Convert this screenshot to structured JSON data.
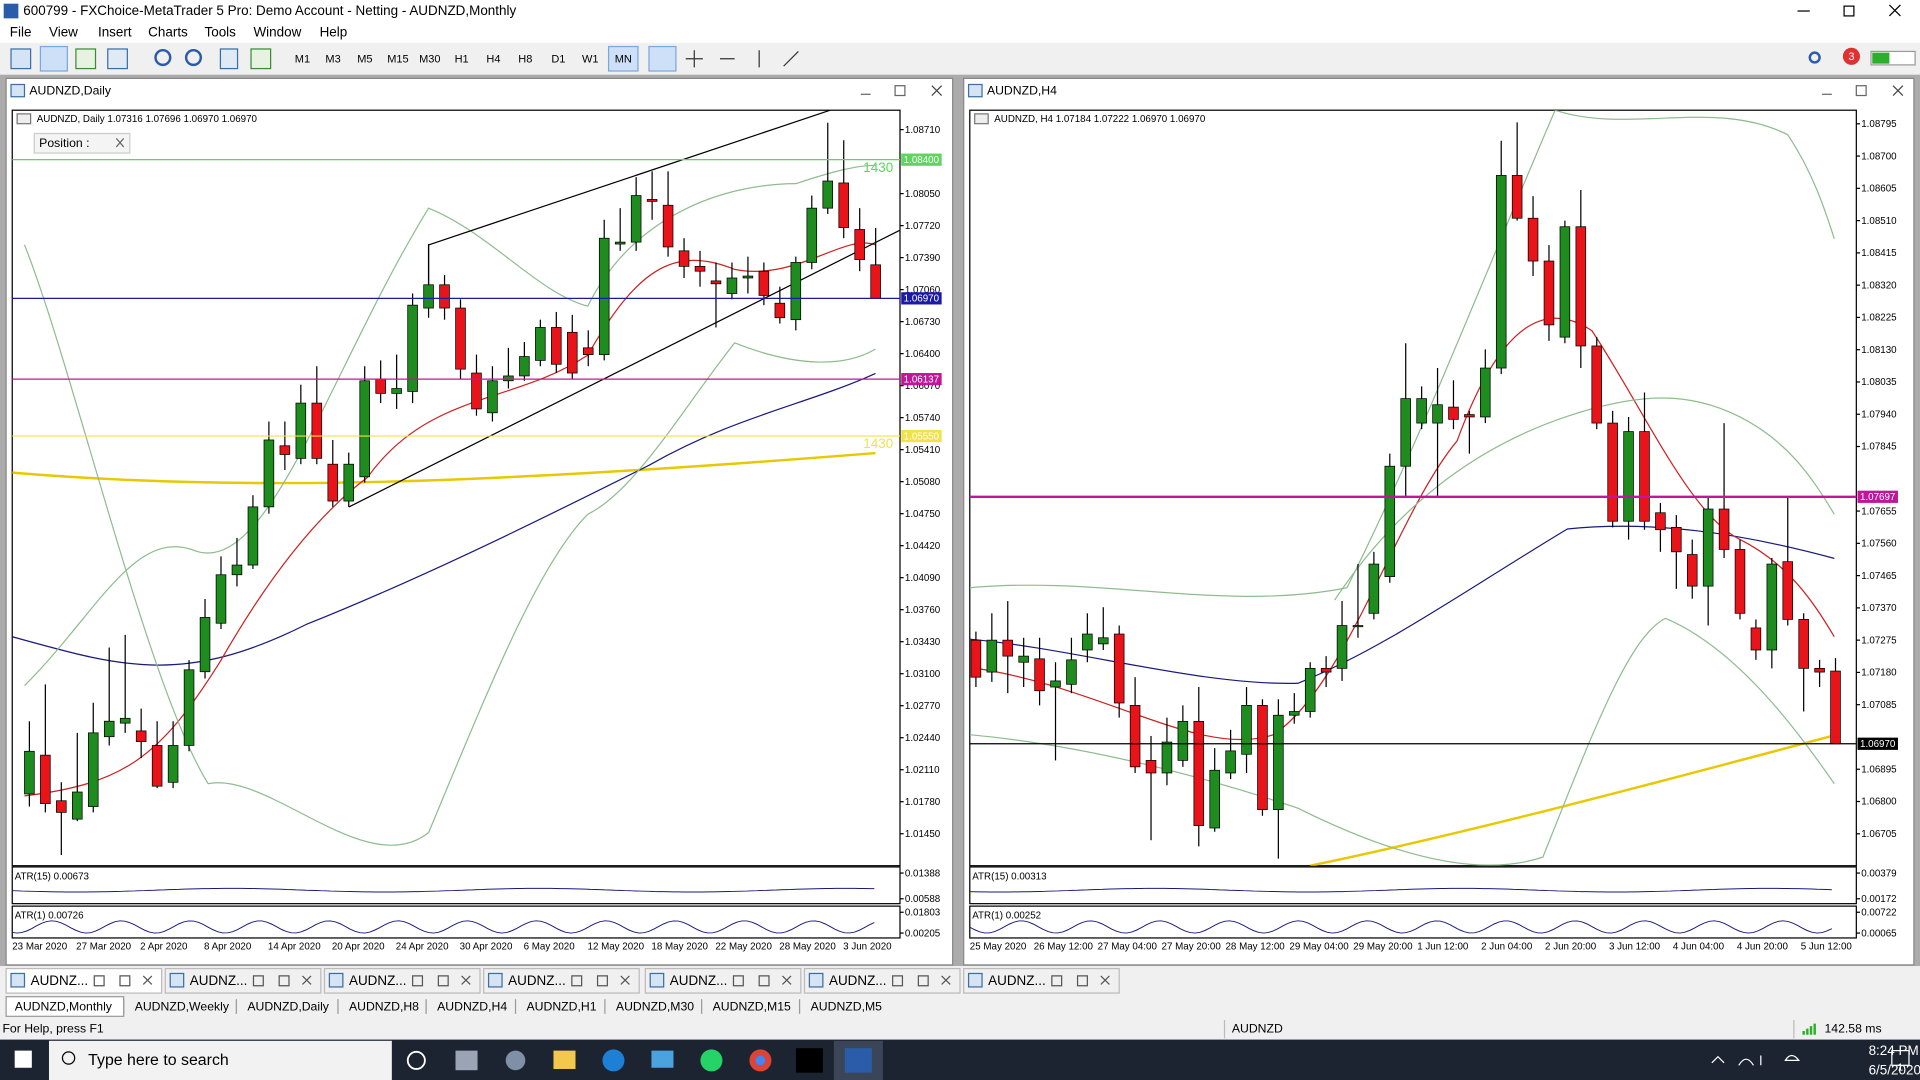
{
  "window_title": "600799 - FXChoice-MetaTrader 5 Pro: Demo Account - Netting - AUDNZD,Monthly",
  "menu": [
    "File",
    "View",
    "Insert",
    "Charts",
    "Tools",
    "Window",
    "Help"
  ],
  "timeframes": [
    "M1",
    "M3",
    "M5",
    "M15",
    "M30",
    "H1",
    "H4",
    "H8",
    "D1",
    "W1",
    "MN"
  ],
  "alert_count": "3",
  "charts": [
    {
      "window_title": "AUDNZD,Daily",
      "info": "AUDNZD, Daily  1.07316 1.07696 1.06970 1.06970",
      "position_label": "Position :",
      "ylim": [
        1.0112,
        1.0891
      ],
      "yticks": [
        {
          "value": 1.0871,
          "label": "1.08710"
        },
        {
          "value": 1.0805,
          "label": "1.08050"
        },
        {
          "value": 1.0772,
          "label": "1.07720"
        },
        {
          "value": 1.0739,
          "label": "1.07390"
        },
        {
          "value": 1.0706,
          "label": "1.07060"
        },
        {
          "value": 1.0673,
          "label": "1.06730"
        },
        {
          "value": 1.064,
          "label": "1.06400"
        },
        {
          "value": 1.0607,
          "label": "1.06070"
        },
        {
          "value": 1.0574,
          "label": "1.05740"
        },
        {
          "value": 1.0541,
          "label": "1.05410"
        },
        {
          "value": 1.0508,
          "label": "1.05080"
        },
        {
          "value": 1.0475,
          "label": "1.04750"
        },
        {
          "value": 1.0442,
          "label": "1.04420"
        },
        {
          "value": 1.0409,
          "label": "1.04090"
        },
        {
          "value": 1.0376,
          "label": "1.03760"
        },
        {
          "value": 1.0343,
          "label": "1.03430"
        },
        {
          "value": 1.031,
          "label": "1.03100"
        },
        {
          "value": 1.0277,
          "label": "1.02770"
        },
        {
          "value": 1.0244,
          "label": "1.02440"
        },
        {
          "value": 1.0211,
          "label": "1.02110"
        },
        {
          "value": 1.0178,
          "label": "1.01780"
        },
        {
          "value": 1.0145,
          "label": "1.01450"
        }
      ],
      "levels": [
        {
          "value": 1.084,
          "label": "1.08400",
          "color": "#5cd65c",
          "note": "1430"
        },
        {
          "value": 1.0697,
          "label": "1.06970",
          "color": "#1a1aa6"
        },
        {
          "value": 1.06137,
          "label": "1.06137",
          "color": "#c0169a"
        },
        {
          "value": 1.0555,
          "label": "1.05550",
          "color": "#f2e14c",
          "note": "1430"
        }
      ],
      "candles": [
        [
          1.0186,
          1.0261,
          1.0173,
          1.023
        ],
        [
          1.0226,
          1.0299,
          1.0167,
          1.0176
        ],
        [
          1.0179,
          1.0198,
          1.0123,
          1.0167
        ],
        [
          1.016,
          1.0249,
          1.0158,
          1.0188
        ],
        [
          1.0173,
          1.028,
          1.0167,
          1.0249
        ],
        [
          1.0245,
          1.0337,
          1.0236,
          1.0261
        ],
        [
          1.0259,
          1.035,
          1.0249,
          1.0264
        ],
        [
          1.0251,
          1.0274,
          1.0223,
          1.024
        ],
        [
          1.0236,
          1.0261,
          1.0192,
          1.0194
        ],
        [
          1.0198,
          1.0261,
          1.0192,
          1.0236
        ],
        [
          1.0236,
          1.0324,
          1.023,
          1.0314
        ],
        [
          1.0312,
          1.0387,
          1.0305,
          1.0368
        ],
        [
          1.0362,
          1.0431,
          1.0356,
          1.0412
        ],
        [
          1.0412,
          1.045,
          1.04,
          1.0422
        ],
        [
          1.0422,
          1.0494,
          1.0418,
          1.0482
        ],
        [
          1.0482,
          1.057,
          1.0475,
          1.0551
        ],
        [
          1.0545,
          1.057,
          1.052,
          1.0536
        ],
        [
          1.0532,
          1.0608,
          1.0526,
          1.0589
        ],
        [
          1.0589,
          1.0627,
          1.0526,
          1.0532
        ],
        [
          1.0526,
          1.0551,
          1.0482,
          1.0488
        ],
        [
          1.0488,
          1.0538,
          1.0482,
          1.0526
        ],
        [
          1.0513,
          1.0627,
          1.0507,
          1.0612
        ],
        [
          1.0614,
          1.0633,
          1.0589,
          1.0599
        ],
        [
          1.0599,
          1.0639,
          1.0583,
          1.0604
        ],
        [
          1.0601,
          1.0702,
          1.0589,
          1.069
        ],
        [
          1.0687,
          1.0753,
          1.0677,
          1.0711
        ],
        [
          1.0711,
          1.0721,
          1.0675,
          1.0687
        ],
        [
          1.0687,
          1.0696,
          1.0614,
          1.0624
        ],
        [
          1.062,
          1.0639,
          1.0576,
          1.0583
        ],
        [
          1.0579,
          1.0627,
          1.057,
          1.0612
        ],
        [
          1.0612,
          1.0646,
          1.0604,
          1.0617
        ],
        [
          1.0617,
          1.0652,
          1.0612,
          1.0637
        ],
        [
          1.0633,
          1.0675,
          1.0627,
          1.0667
        ],
        [
          1.0667,
          1.0683,
          1.062,
          1.0629
        ],
        [
          1.0662,
          1.068,
          1.0614,
          1.062
        ],
        [
          1.0646,
          1.0664,
          1.0627,
          1.0639
        ],
        [
          1.0639,
          1.0778,
          1.0633,
          1.0759
        ],
        [
          1.0753,
          1.079,
          1.0746,
          1.0755
        ],
        [
          1.0755,
          1.0822,
          1.0746,
          1.0803
        ],
        [
          1.0799,
          1.0828,
          1.0778,
          1.0797
        ],
        [
          1.0793,
          1.0828,
          1.074,
          1.075
        ],
        [
          1.0746,
          1.0759,
          1.0718,
          1.073
        ],
        [
          1.073,
          1.0746,
          1.0709,
          1.0725
        ],
        [
          1.0715,
          1.0734,
          1.0667,
          1.0712
        ],
        [
          1.0702,
          1.0734,
          1.0696,
          1.0718
        ],
        [
          1.0718,
          1.074,
          1.0702,
          1.072
        ],
        [
          1.0725,
          1.0734,
          1.069,
          1.07
        ],
        [
          1.0692,
          1.0709,
          1.0671,
          1.0677
        ],
        [
          1.0675,
          1.074,
          1.0664,
          1.0734
        ],
        [
          1.0734,
          1.0803,
          1.0727,
          1.079
        ],
        [
          1.079,
          1.0878,
          1.0784,
          1.0818
        ],
        [
          1.0816,
          1.086,
          1.0759,
          1.077
        ],
        [
          1.0768,
          1.079,
          1.0725,
          1.0737
        ],
        [
          1.07316,
          1.07696,
          1.0697,
          1.0697
        ]
      ],
      "dates": [
        "23 Mar 2020",
        "27 Mar 2020",
        "2 Apr 2020",
        "8 Apr 2020",
        "14 Apr 2020",
        "20 Apr 2020",
        "24 Apr 2020",
        "30 Apr 2020",
        "6 May 2020",
        "12 May 2020",
        "18 May 2020",
        "22 May 2020",
        "28 May 2020",
        "3 Jun 2020"
      ],
      "atr": [
        {
          "label": "ATR(15) 0.00673",
          "ticks": [
            {
              "value": 0.01388,
              "label": "0.01388"
            },
            {
              "value": 0.00588,
              "label": "0.00588"
            }
          ]
        },
        {
          "label": "ATR(1) 0.00726",
          "ticks": [
            {
              "value": 0.01803,
              "label": "0.01803"
            },
            {
              "value": 0.00205,
              "label": "0.00205"
            }
          ]
        }
      ]
    },
    {
      "window_title": "AUDNZD,H4",
      "info": "AUDNZD, H4  1.07184 1.07222 1.06970 1.06970",
      "ylim": [
        1.06611,
        1.08835
      ],
      "yticks": [
        {
          "value": 1.08795,
          "label": "1.08795"
        },
        {
          "value": 1.087,
          "label": "1.08700"
        },
        {
          "value": 1.08605,
          "label": "1.08605"
        },
        {
          "value": 1.0851,
          "label": "1.08510"
        },
        {
          "value": 1.08415,
          "label": "1.08415"
        },
        {
          "value": 1.0832,
          "label": "1.08320"
        },
        {
          "value": 1.08225,
          "label": "1.08225"
        },
        {
          "value": 1.0813,
          "label": "1.08130"
        },
        {
          "value": 1.08035,
          "label": "1.08035"
        },
        {
          "value": 1.0794,
          "label": "1.07940"
        },
        {
          "value": 1.07845,
          "label": "1.07845"
        },
        {
          "value": 1.07655,
          "label": "1.07655"
        },
        {
          "value": 1.0756,
          "label": "1.07560"
        },
        {
          "value": 1.07465,
          "label": "1.07465"
        },
        {
          "value": 1.0737,
          "label": "1.07370"
        },
        {
          "value": 1.07275,
          "label": "1.07275"
        },
        {
          "value": 1.0718,
          "label": "1.07180"
        },
        {
          "value": 1.07085,
          "label": "1.07085"
        },
        {
          "value": 1.06895,
          "label": "1.06895"
        },
        {
          "value": 1.068,
          "label": "1.06800"
        },
        {
          "value": 1.06705,
          "label": "1.06705"
        }
      ],
      "levels": [
        {
          "value": 1.07697,
          "label": "1.07697",
          "color": "#c0169a"
        },
        {
          "value": 1.0697,
          "label": "1.06970",
          "color": "#000000"
        }
      ],
      "candles": [
        [
          1.07275,
          1.073,
          1.07137,
          1.07166
        ],
        [
          1.07181,
          1.07354,
          1.07152,
          1.07275
        ],
        [
          1.07275,
          1.0739,
          1.07119,
          1.07228
        ],
        [
          1.0721,
          1.07282,
          1.07137,
          1.07228
        ],
        [
          1.0722,
          1.07282,
          1.07083,
          1.07126
        ],
        [
          1.07137,
          1.0721,
          1.06921,
          1.07155
        ],
        [
          1.07145,
          1.07282,
          1.07119,
          1.07217
        ],
        [
          1.07246,
          1.07354,
          1.0721,
          1.07293
        ],
        [
          1.07264,
          1.07372,
          1.07246,
          1.07282
        ],
        [
          1.07293,
          1.07318,
          1.07047,
          1.0709
        ],
        [
          1.07083,
          1.07166,
          1.06884,
          1.06902
        ],
        [
          1.06921,
          1.06993,
          1.06686,
          1.06884
        ],
        [
          1.06884,
          1.07047,
          1.06848,
          1.06975
        ],
        [
          1.06921,
          1.07083,
          1.06902,
          1.07036
        ],
        [
          1.07036,
          1.07137,
          1.06668,
          1.06729
        ],
        [
          1.06722,
          1.06957,
          1.06711,
          1.06892
        ],
        [
          1.06884,
          1.07011,
          1.06866,
          1.06949
        ],
        [
          1.06939,
          1.07137,
          1.06884,
          1.07083
        ],
        [
          1.07083,
          1.07101,
          1.06758,
          1.06776
        ],
        [
          1.06776,
          1.07101,
          1.06632,
          1.07054
        ],
        [
          1.07054,
          1.07119,
          1.07029,
          1.07065
        ],
        [
          1.07065,
          1.0721,
          1.07047,
          1.07192
        ],
        [
          1.07192,
          1.07228,
          1.07137,
          1.07181
        ],
        [
          1.07192,
          1.0739,
          1.07155,
          1.07318
        ],
        [
          1.07318,
          1.07499,
          1.07282,
          1.07318
        ],
        [
          1.07354,
          1.07535,
          1.07336,
          1.07499
        ],
        [
          1.07462,
          1.07824,
          1.07444,
          1.07787
        ],
        [
          1.07787,
          1.08149,
          1.07697,
          1.07986
        ],
        [
          1.07914,
          1.08022,
          1.07896,
          1.07986
        ],
        [
          1.07914,
          1.08076,
          1.07697,
          1.07968
        ],
        [
          1.07961,
          1.0804,
          1.07896,
          1.07925
        ],
        [
          1.07939,
          1.0795,
          1.07824,
          1.07932
        ],
        [
          1.07932,
          1.08131,
          1.07914,
          1.08076
        ],
        [
          1.08076,
          1.08745,
          1.08058,
          1.08643
        ],
        [
          1.08643,
          1.08799,
          1.0851,
          1.08517
        ],
        [
          1.08517,
          1.08582,
          1.08347,
          1.08391
        ],
        [
          1.08391,
          1.08438,
          1.08156,
          1.08203
        ],
        [
          1.08167,
          1.0851,
          1.08149,
          1.08492
        ],
        [
          1.08492,
          1.086,
          1.08076,
          1.08141
        ],
        [
          1.08141,
          1.08167,
          1.07896,
          1.07914
        ],
        [
          1.07914,
          1.0795,
          1.07607,
          1.07625
        ],
        [
          1.07625,
          1.07932,
          1.07571,
          1.07889
        ],
        [
          1.07889,
          1.08004,
          1.076,
          1.07625
        ],
        [
          1.0765,
          1.07679,
          1.07535,
          1.076
        ],
        [
          1.07607,
          1.07643,
          1.07426,
          1.07535
        ],
        [
          1.07527,
          1.07571,
          1.07397,
          1.07434
        ],
        [
          1.07434,
          1.07697,
          1.07318,
          1.07661
        ],
        [
          1.07661,
          1.07914,
          1.07517,
          1.07542
        ],
        [
          1.07542,
          1.07571,
          1.07336,
          1.07354
        ],
        [
          1.07311,
          1.07336,
          1.07217,
          1.07246
        ],
        [
          1.07246,
          1.07517,
          1.07192,
          1.07499
        ],
        [
          1.07506,
          1.07697,
          1.07318,
          1.07336
        ],
        [
          1.07336,
          1.07354,
          1.07065,
          1.07192
        ],
        [
          1.07192,
          1.07217,
          1.07137,
          1.07181
        ],
        [
          1.07184,
          1.07222,
          1.0697,
          1.0697
        ]
      ],
      "dates": [
        "25 May 2020",
        "26 May 12:00",
        "27 May 04:00",
        "27 May 20:00",
        "28 May 12:00",
        "29 May 04:00",
        "29 May 20:00",
        "1 Jun 12:00",
        "2 Jun 04:00",
        "2 Jun 20:00",
        "3 Jun 12:00",
        "4 Jun 04:00",
        "4 Jun 20:00",
        "5 Jun 12:00"
      ],
      "atr": [
        {
          "label": "ATR(15) 0.00313",
          "ticks": [
            {
              "value": 0.00379,
              "label": "0.00379"
            },
            {
              "value": 0.00172,
              "label": "0.00172"
            }
          ]
        },
        {
          "label": "ATR(1) 0.00252",
          "ticks": [
            {
              "value": 0.00722,
              "label": "0.00722"
            },
            {
              "value": 0.00065,
              "label": "0.00065"
            }
          ]
        }
      ]
    }
  ],
  "window_tabs": [
    "AUDNZ...",
    "AUDNZ...",
    "AUDNZ...",
    "AUDNZ...",
    "AUDNZ...",
    "AUDNZ...",
    "AUDNZ..."
  ],
  "symbol_tabs": [
    "AUDNZD,Monthly",
    "AUDNZD,Weekly",
    "AUDNZD,Daily",
    "AUDNZD,H8",
    "AUDNZD,H4",
    "AUDNZD,H1",
    "AUDNZD,M30",
    "AUDNZD,M15",
    "AUDNZD,M5"
  ],
  "status": {
    "help": "For Help, press F1",
    "symbol": "AUDNZD",
    "ping": "142.58 ms"
  },
  "taskbar": {
    "search": "Type here to search",
    "time": "8:24 PM",
    "date": "6/5/2020",
    "notifications": "1"
  }
}
